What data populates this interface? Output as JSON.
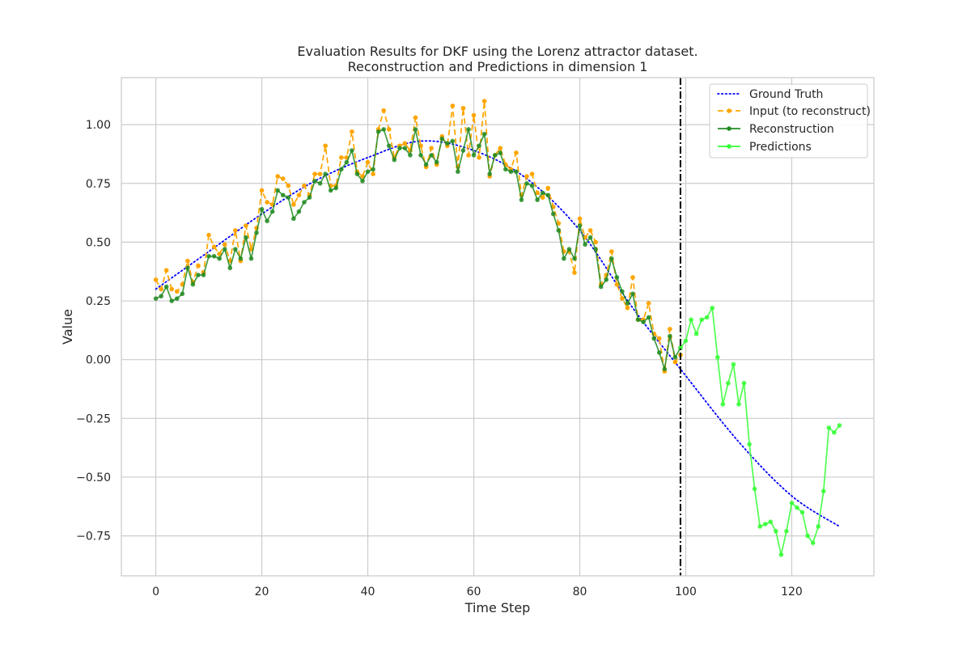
{
  "chart_data": {
    "type": "line",
    "title": "Evaluation Results for DKF using the Lorenz attractor dataset.",
    "subtitle": "Reconstruction and Predictions in dimension 1",
    "xlabel": "Time Step",
    "ylabel": "Value",
    "xlim": [
      -6.5,
      135.5
    ],
    "ylim": [
      -0.92,
      1.2
    ],
    "xticks": [
      0,
      20,
      40,
      60,
      80,
      100,
      120
    ],
    "yticks": [
      -0.75,
      -0.5,
      -0.25,
      0.0,
      0.25,
      0.5,
      0.75,
      1.0
    ],
    "ytick_labels": [
      "−0.75",
      "−0.50",
      "−0.25",
      "0.00",
      "0.25",
      "0.50",
      "0.75",
      "1.00"
    ],
    "grid": true,
    "legend_position": "top-right",
    "vline": {
      "x": 99,
      "style": "dash-dot",
      "color": "#000000"
    },
    "series": [
      {
        "name": "Ground Truth",
        "style": "dotted",
        "color": "#0000ff",
        "key_points": [
          [
            0,
            0.3
          ],
          [
            10,
            0.46
          ],
          [
            20,
            0.62
          ],
          [
            30,
            0.76
          ],
          [
            40,
            0.86
          ],
          [
            50,
            0.93
          ],
          [
            60,
            0.89
          ],
          [
            70,
            0.77
          ],
          [
            80,
            0.55
          ],
          [
            90,
            0.22
          ],
          [
            99,
            -0.04
          ],
          [
            110,
            -0.35
          ],
          [
            120,
            -0.58
          ],
          [
            129,
            -0.71
          ]
        ]
      },
      {
        "name": "Input (to reconstruct)",
        "style": "dashed",
        "marker": "dot",
        "color": "#ffa500",
        "x_start": 0,
        "values": [
          0.34,
          0.3,
          0.38,
          0.3,
          0.29,
          0.32,
          0.42,
          0.33,
          0.4,
          0.37,
          0.53,
          0.48,
          0.45,
          0.49,
          0.42,
          0.55,
          0.42,
          0.57,
          0.47,
          0.56,
          0.72,
          0.67,
          0.66,
          0.78,
          0.77,
          0.74,
          0.66,
          0.7,
          0.74,
          0.7,
          0.79,
          0.79,
          0.91,
          0.74,
          0.74,
          0.86,
          0.86,
          0.97,
          0.8,
          0.78,
          0.84,
          0.79,
          0.98,
          1.06,
          0.98,
          0.86,
          0.91,
          0.92,
          0.89,
          1.03,
          0.91,
          0.82,
          0.9,
          0.83,
          0.95,
          0.91,
          1.08,
          0.82,
          1.07,
          0.87,
          1.04,
          0.86,
          1.1,
          0.78,
          0.87,
          0.9,
          0.83,
          0.81,
          0.88,
          0.7,
          0.78,
          0.79,
          0.71,
          0.69,
          0.73,
          0.65,
          0.58,
          0.46,
          0.46,
          0.37,
          0.6,
          0.52,
          0.55,
          0.5,
          0.32,
          0.36,
          0.46,
          0.32,
          0.26,
          0.22,
          0.35,
          0.17,
          0.17,
          0.24,
          0.11,
          0.09,
          -0.05,
          0.13,
          -0.01,
          0.02
        ]
      },
      {
        "name": "Reconstruction",
        "style": "solid",
        "marker": "dot",
        "color": "#228b22",
        "x_start": 0,
        "values": [
          0.26,
          0.27,
          0.31,
          0.25,
          0.26,
          0.28,
          0.39,
          0.32,
          0.36,
          0.36,
          0.44,
          0.44,
          0.43,
          0.47,
          0.39,
          0.47,
          0.43,
          0.52,
          0.43,
          0.54,
          0.64,
          0.59,
          0.63,
          0.72,
          0.7,
          0.69,
          0.6,
          0.63,
          0.67,
          0.69,
          0.76,
          0.75,
          0.79,
          0.72,
          0.73,
          0.81,
          0.84,
          0.89,
          0.79,
          0.76,
          0.8,
          0.81,
          0.97,
          0.98,
          0.91,
          0.85,
          0.9,
          0.9,
          0.87,
          0.98,
          0.87,
          0.83,
          0.87,
          0.84,
          0.94,
          0.92,
          0.93,
          0.8,
          0.89,
          0.98,
          0.87,
          0.91,
          0.96,
          0.79,
          0.87,
          0.88,
          0.81,
          0.8,
          0.8,
          0.68,
          0.75,
          0.74,
          0.68,
          0.71,
          0.7,
          0.62,
          0.55,
          0.43,
          0.47,
          0.43,
          0.57,
          0.49,
          0.52,
          0.47,
          0.31,
          0.34,
          0.43,
          0.35,
          0.29,
          0.24,
          0.28,
          0.17,
          0.16,
          0.18,
          0.09,
          0.03,
          -0.04,
          0.1,
          0.01,
          0.05
        ]
      },
      {
        "name": "Predictions",
        "style": "solid",
        "marker": "dot",
        "color": "#33ff33",
        "x_start": 99,
        "values": [
          0.05,
          0.08,
          0.17,
          0.11,
          0.17,
          0.18,
          0.22,
          0.01,
          -0.19,
          -0.1,
          -0.02,
          -0.19,
          -0.1,
          -0.36,
          -0.55,
          -0.71,
          -0.7,
          -0.69,
          -0.73,
          -0.83,
          -0.73,
          -0.61,
          -0.63,
          -0.65,
          -0.75,
          -0.78,
          -0.71,
          -0.56,
          -0.29,
          -0.31,
          -0.28
        ]
      }
    ]
  }
}
